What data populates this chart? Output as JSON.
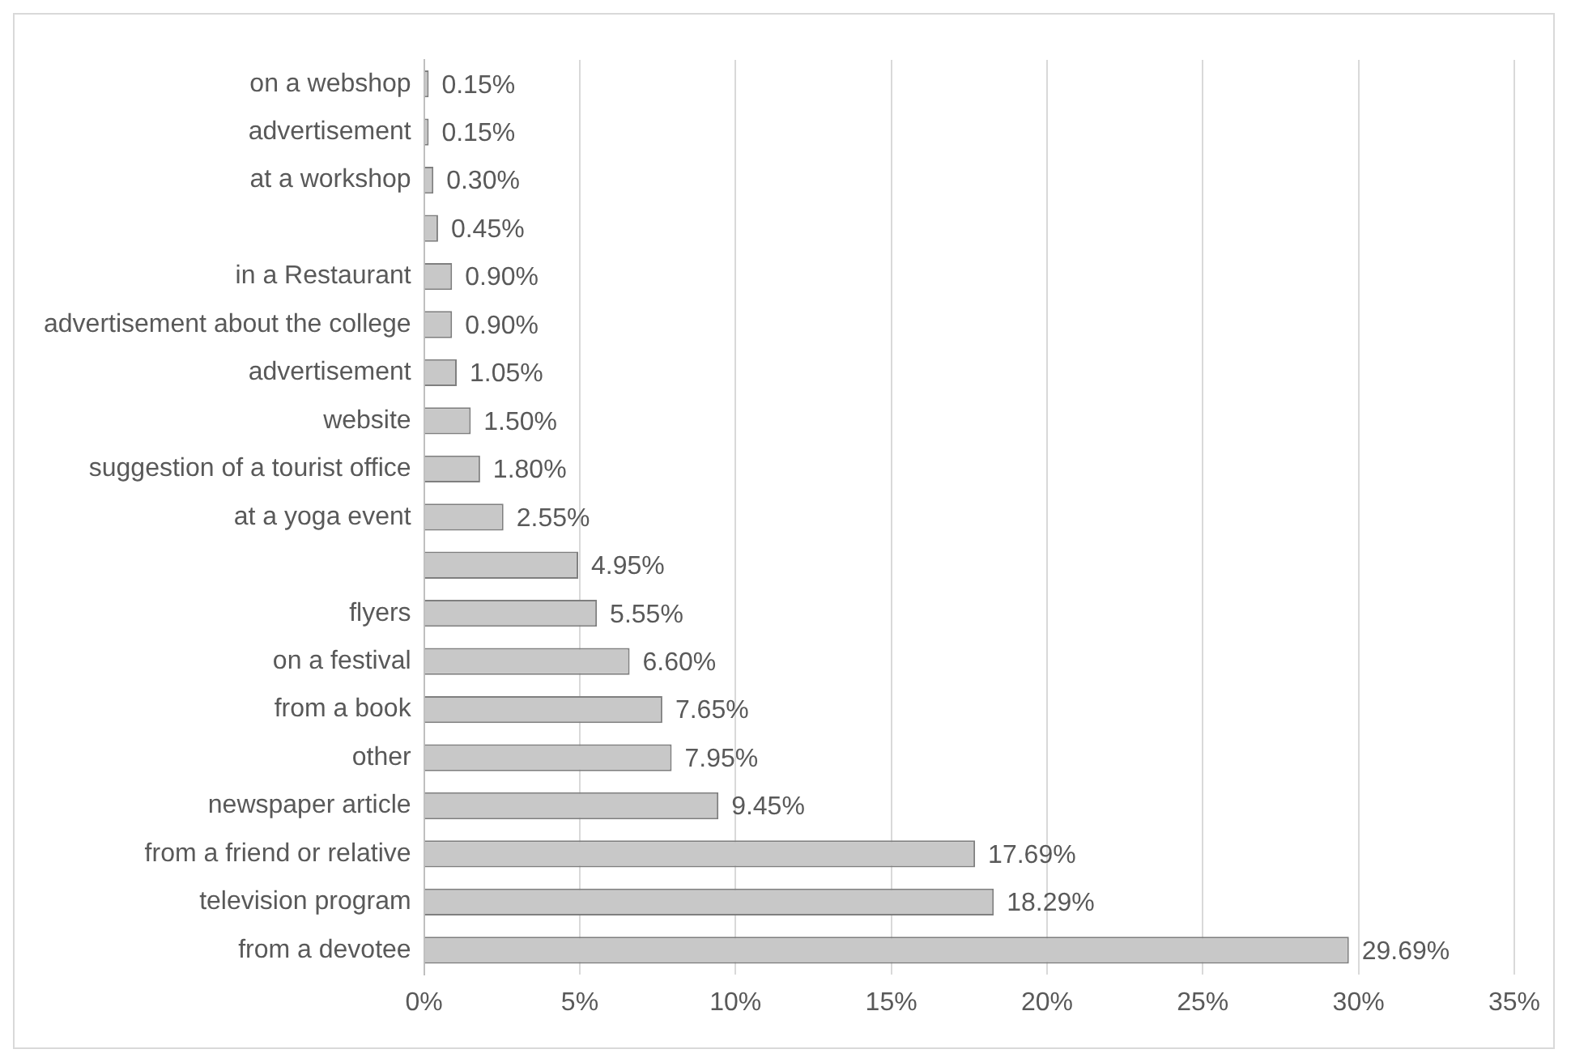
{
  "chart_data": {
    "type": "bar",
    "orientation": "horizontal",
    "categories": [
      "on a webshop",
      "advertisement",
      "at a workshop",
      null,
      "in a Restaurant",
      "advertisement about the college",
      "advertisement",
      "website",
      "suggestion of a tourist office",
      "at a yoga event",
      null,
      "flyers",
      "on a festival",
      "from a book",
      "other",
      "newspaper article",
      "from a friend or relative",
      "television program",
      "from a devotee"
    ],
    "values": [
      0.15,
      0.15,
      0.3,
      0.45,
      0.9,
      0.9,
      1.05,
      1.5,
      1.8,
      2.55,
      4.95,
      5.55,
      6.6,
      7.65,
      7.95,
      9.45,
      17.69,
      18.29,
      29.69
    ],
    "value_labels": [
      "0.15%",
      "0.15%",
      "0.30%",
      "0.45%",
      "0.90%",
      "0.90%",
      "1.05%",
      "1.50%",
      "1.80%",
      "2.55%",
      "4.95%",
      "5.55%",
      "6.60%",
      "7.65%",
      "7.95%",
      "9.45%",
      "17.69%",
      "18.29%",
      "29.69%"
    ],
    "color": "#c8c8c8",
    "xlim": [
      0,
      35
    ],
    "xticks": [
      {
        "value": 0,
        "label": "0%"
      },
      {
        "value": 5,
        "label": "5%"
      },
      {
        "value": 10,
        "label": "10%"
      },
      {
        "value": 15,
        "label": "15%"
      },
      {
        "value": 20,
        "label": "20%"
      },
      {
        "value": 25,
        "label": "25%"
      },
      {
        "value": 30,
        "label": "30%"
      },
      {
        "value": 35,
        "label": "35%"
      }
    ],
    "grid": "x",
    "legend": false
  }
}
